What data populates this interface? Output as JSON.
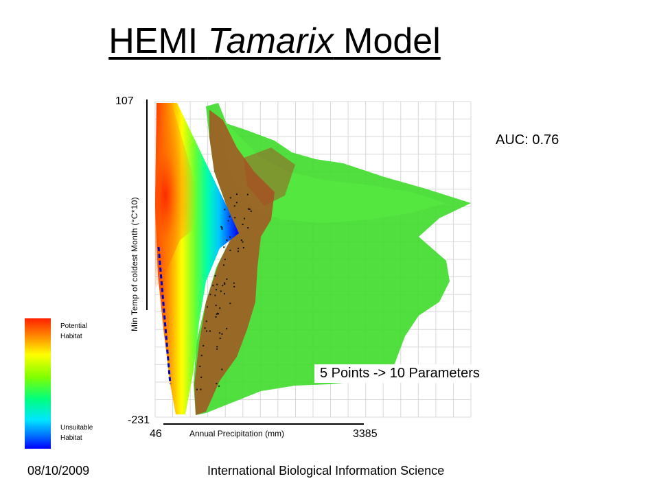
{
  "slide": {
    "title_prefix": "HEMI ",
    "title_italic": "Tamarix",
    "title_suffix": " Model",
    "auc": "AUC: 0.76",
    "callout": "5 Points -> 10 Parameters",
    "footer_date": "08/10/2009",
    "footer_org": "International Biological Information Science"
  },
  "legend": {
    "top_label_line1": "Potential",
    "top_label_line2": "Habitat",
    "bottom_label_line1": "Unsuitable",
    "bottom_label_line2": "Habitat",
    "colors": [
      "#ff2200",
      "#ff8c00",
      "#ffff00",
      "#7fff00",
      "#00ff7f",
      "#00e5ff",
      "#0070ff",
      "#0000ff"
    ]
  },
  "chart_data": {
    "type": "heatmap",
    "title": "HEMI Tamarix Model",
    "xlabel": "Annual Precipitation (mm)",
    "ylabel": "Min Temp of coldest Month (°C*10)",
    "xlim": [
      46,
      3385
    ],
    "ylim": [
      -231,
      107
    ],
    "x_tick_labels": [
      "46",
      "3385"
    ],
    "y_tick_labels": [
      "107",
      "-231"
    ],
    "grid": true,
    "occurrence_color": "#22dd22",
    "habitat_colors": [
      "#ff2200",
      "#ffff00",
      "#00ff7f",
      "#0000ff"
    ]
  }
}
